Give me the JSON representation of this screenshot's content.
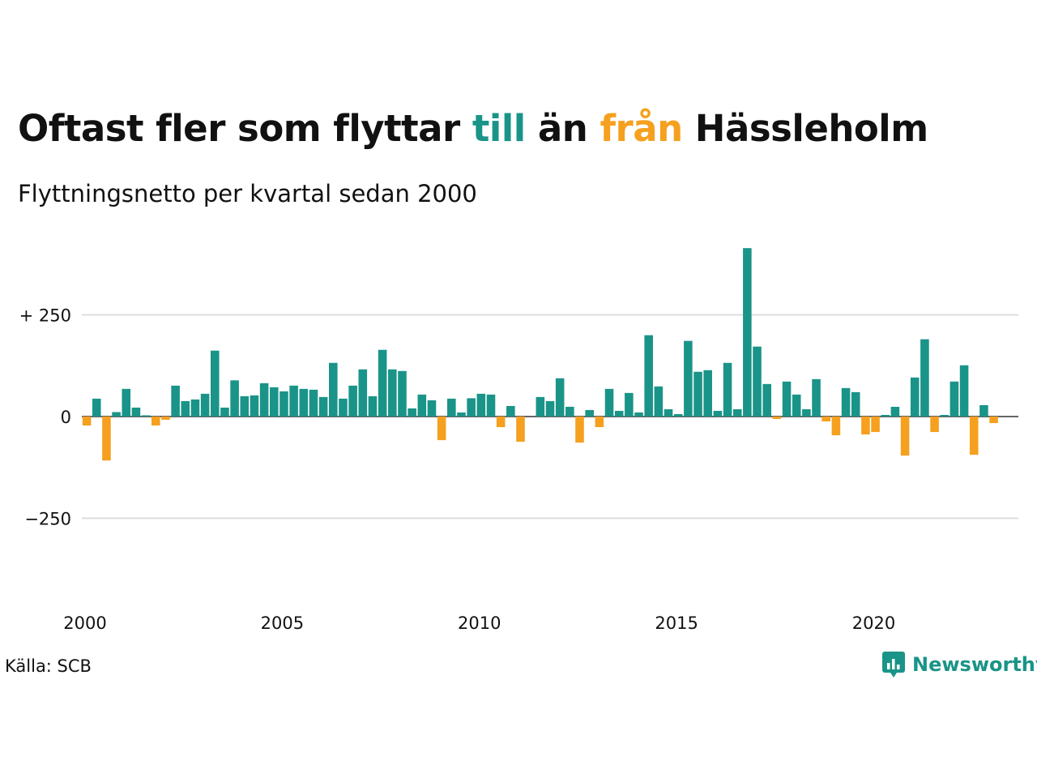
{
  "title": {
    "part1": "Oftast fler som flyttar ",
    "word_till": "till",
    "part2": " än ",
    "word_fran": "från",
    "part3": " Hässleholm"
  },
  "subtitle": "Flyttningsnetto per kvartal sedan 2000",
  "source": "Källa: SCB",
  "logo": {
    "text": "Newsworthy",
    "icon": "newsworthy-chart-bubble-icon"
  },
  "colors": {
    "positive": "#1a9488",
    "negative": "#f5a01f",
    "grid": "#dddddd",
    "axis": "#333333",
    "text": "#111111"
  },
  "chart_data": {
    "type": "bar",
    "title": "Oftast fler som flyttar till än från Hässleholm",
    "subtitle": "Flyttningsnetto per kvartal sedan 2000",
    "ylabel": "",
    "xlabel": "",
    "ylim": [
      -400,
      420
    ],
    "xlim": [
      2000,
      2023.75
    ],
    "grid": true,
    "y_ticks": [
      {
        "value": 250,
        "label": "+ 250"
      },
      {
        "value": 0,
        "label": "0"
      },
      {
        "value": -250,
        "label": "−250"
      }
    ],
    "x_ticks": [
      {
        "value": 2000,
        "label": "2000"
      },
      {
        "value": 2005,
        "label": "2005"
      },
      {
        "value": 2010,
        "label": "2010"
      },
      {
        "value": 2015,
        "label": "2015"
      },
      {
        "value": 2020,
        "label": "2020"
      }
    ],
    "start_year": 2000,
    "quarters_per_year": 4,
    "values": [
      -22,
      44,
      -108,
      11,
      68,
      22,
      3,
      -22,
      -8,
      76,
      38,
      42,
      56,
      162,
      22,
      89,
      50,
      52,
      82,
      72,
      62,
      76,
      68,
      66,
      48,
      132,
      44,
      76,
      116,
      50,
      164,
      116,
      112,
      20,
      54,
      40,
      -58,
      44,
      10,
      45,
      56,
      54,
      -26,
      26,
      -62,
      0,
      48,
      38,
      94,
      24,
      -64,
      16,
      -26,
      68,
      14,
      58,
      10,
      200,
      74,
      18,
      6,
      186,
      110,
      114,
      14,
      132,
      18,
      414,
      172,
      80,
      -6,
      86,
      54,
      18,
      92,
      -12,
      -46,
      70,
      60,
      -44,
      -38,
      4,
      24,
      -96,
      96,
      190,
      -38,
      4,
      86,
      126,
      -94,
      28,
      -16
    ]
  }
}
